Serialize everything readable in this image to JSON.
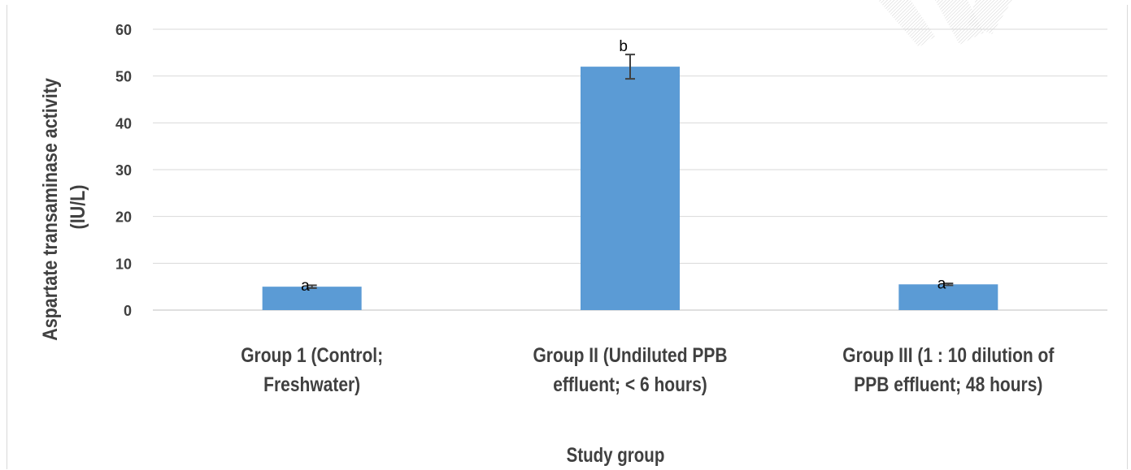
{
  "chart_data": {
    "type": "bar",
    "categories": [
      [
        "Group 1 (Control;",
        "Freshwater)"
      ],
      [
        "Group II (Undiluted PPB",
        "effluent; < 6 hours)"
      ],
      [
        "Group III (1 : 10 dilution of",
        "PPB effluent; 48 hours)"
      ]
    ],
    "values": [
      5.0,
      52.0,
      5.5
    ],
    "error": [
      0.3,
      2.6,
      0.2
    ],
    "significance_labels": [
      "a",
      "b",
      "a"
    ],
    "xlabel": "Study group",
    "ylabel": [
      "Aspartate transaminase activity",
      "(IU/L)"
    ],
    "ylim": [
      0,
      60
    ],
    "yticks": [
      0,
      10,
      20,
      30,
      40,
      50,
      60
    ],
    "grid": true,
    "legend": "none",
    "colors": {
      "bar": "#5b9bd5",
      "grid": "#d9d9d9",
      "axis": "#bfbfbf",
      "error_bar": "#404040",
      "text": "#404040",
      "label": "#000000"
    }
  }
}
